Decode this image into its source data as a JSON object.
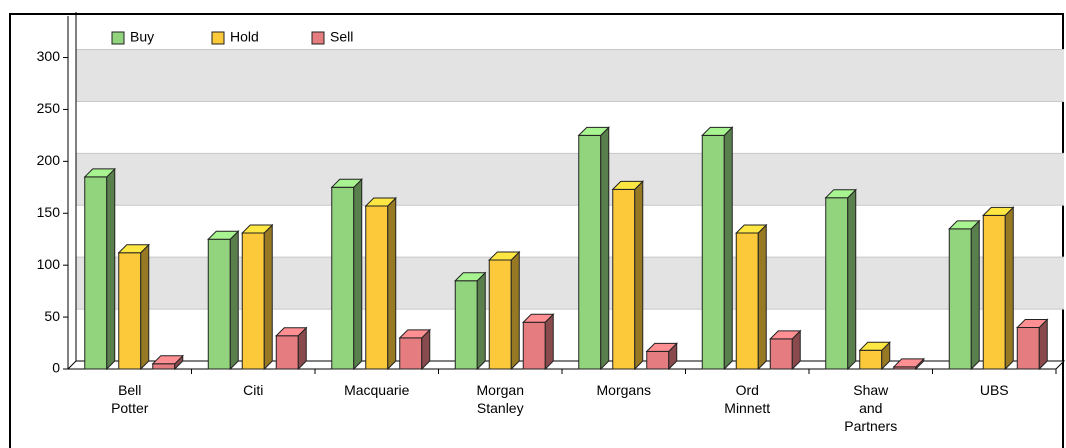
{
  "chart_data": {
    "type": "bar",
    "categories": [
      "Bell\nPotter",
      "Citi",
      "Macquarie",
      "Morgan\nStanley",
      "Morgans",
      "Ord\nMinnett",
      "Shaw\nand\nPartners",
      "UBS"
    ],
    "series": [
      {
        "name": "Buy",
        "color": "#92d47e",
        "values": [
          185,
          125,
          175,
          85,
          225,
          225,
          165,
          135
        ]
      },
      {
        "name": "Hold",
        "color": "#fcc93a",
        "values": [
          112,
          131,
          157,
          105,
          173,
          131,
          18,
          148
        ]
      },
      {
        "name": "Sell",
        "color": "#e57c80",
        "values": [
          5,
          32,
          30,
          45,
          17,
          29,
          2,
          40
        ]
      }
    ],
    "ylim": [
      0,
      340
    ],
    "yticks": [
      0,
      50,
      100,
      150,
      200,
      250,
      300
    ],
    "grid": true,
    "legend": "top-left"
  }
}
